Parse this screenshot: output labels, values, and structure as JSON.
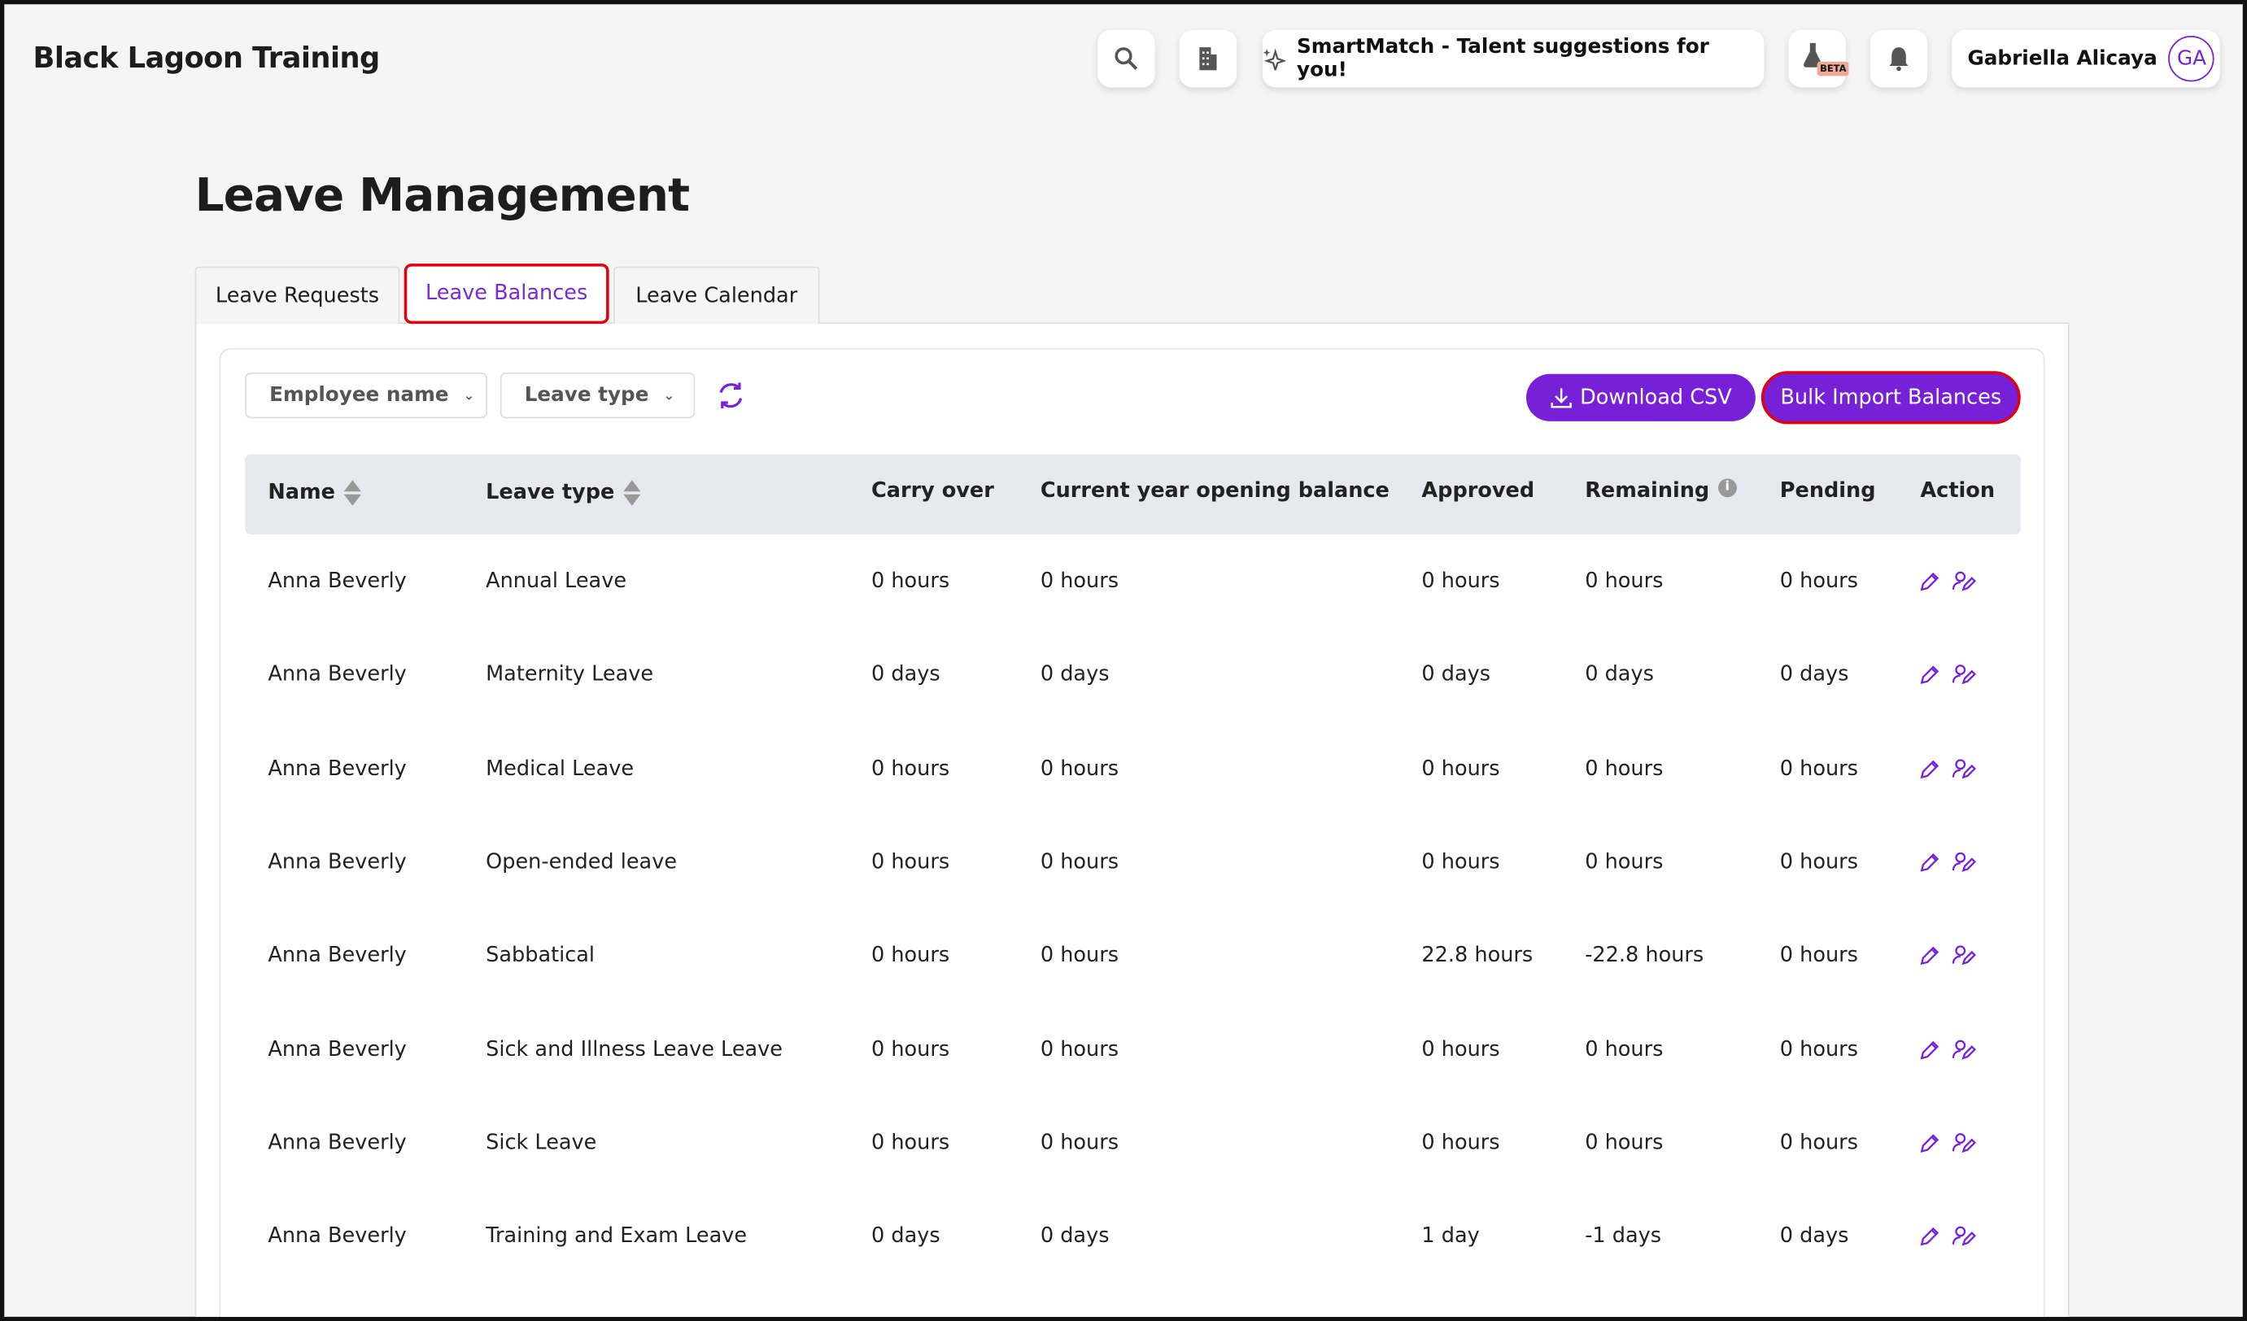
{
  "header": {
    "app_title": "Black Lagoon Training",
    "smartmatch_label": "SmartMatch - Talent suggestions for you!",
    "beta_badge": "BETA",
    "user_name": "Gabriella Alicaya",
    "user_initials": "GA"
  },
  "page": {
    "title": "Leave Management"
  },
  "tabs": [
    {
      "label": "Leave Requests"
    },
    {
      "label": "Leave Balances",
      "active": true
    },
    {
      "label": "Leave Calendar"
    }
  ],
  "filters": {
    "employee": "Employee name",
    "leave_type": "Leave type"
  },
  "actions": {
    "download": "Download CSV",
    "bulk_import": "Bulk Import Balances"
  },
  "colors": {
    "accent": "#7620d8",
    "highlight": "#e0000f"
  },
  "table": {
    "columns": [
      "Name",
      "Leave type",
      "Carry over",
      "Current year opening balance",
      "Approved",
      "Remaining",
      "Pending",
      "Action"
    ],
    "rows": [
      [
        "Anna Beverly",
        "Annual Leave",
        "0 hours",
        "0 hours",
        "0 hours",
        "0 hours",
        "0 hours"
      ],
      [
        "Anna Beverly",
        "Maternity Leave",
        "0 days",
        "0 days",
        "0 days",
        "0 days",
        "0 days"
      ],
      [
        "Anna Beverly",
        "Medical Leave",
        "0 hours",
        "0 hours",
        "0 hours",
        "0 hours",
        "0 hours"
      ],
      [
        "Anna Beverly",
        "Open-ended leave",
        "0 hours",
        "0 hours",
        "0 hours",
        "0 hours",
        "0 hours"
      ],
      [
        "Anna Beverly",
        "Sabbatical",
        "0 hours",
        "0 hours",
        "22.8 hours",
        "-22.8 hours",
        "0 hours"
      ],
      [
        "Anna Beverly",
        "Sick and Illness Leave Leave",
        "0 hours",
        "0 hours",
        "0 hours",
        "0 hours",
        "0 hours"
      ],
      [
        "Anna Beverly",
        "Sick Leave",
        "0 hours",
        "0 hours",
        "0 hours",
        "0 hours",
        "0 hours"
      ],
      [
        "Anna Beverly",
        "Training and Exam Leave",
        "0 days",
        "0 days",
        "1 day",
        "-1 days",
        "0 days"
      ]
    ]
  }
}
